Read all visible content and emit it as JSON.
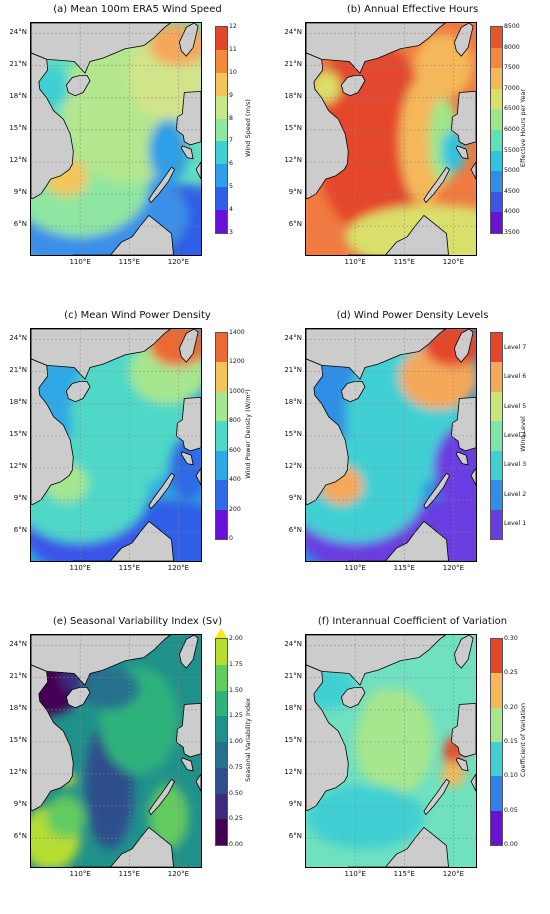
{
  "lat_ticks": [
    "24°N",
    "21°N",
    "18°N",
    "15°N",
    "12°N",
    "9°N",
    "6°N"
  ],
  "lon_ticks": [
    "110°E",
    "115°E",
    "120°E"
  ],
  "panels": [
    {
      "title": "(a) Mean 100m ERA5 Wind Speed",
      "cbar_label": "Wind Speed (m/s)",
      "cbar_ticks": [
        "3",
        "4",
        "5",
        "6",
        "7",
        "8",
        "9",
        "10",
        "11",
        "12"
      ],
      "cbar_colors": [
        "#6a11d9",
        "#2f5fe6",
        "#2e9fe8",
        "#3fd0d3",
        "#8fe6a0",
        "#c8e68a",
        "#f2c65a",
        "#f08a3a",
        "#e2462b"
      ]
    },
    {
      "title": "(b) Annual Effective Hours",
      "cbar_label": "Effective Hours per Year",
      "cbar_ticks": [
        "3500",
        "4000",
        "4500",
        "5000",
        "5500",
        "6000",
        "6500",
        "7000",
        "7500",
        "8000",
        "8500"
      ],
      "cbar_colors": [
        "#6a11d9",
        "#3a55e8",
        "#2f8fe8",
        "#2fc4e0",
        "#5fe0b5",
        "#9fe68a",
        "#d8e06a",
        "#f4b85a",
        "#f18a3f",
        "#e5562d"
      ]
    },
    {
      "title": "(c) Mean Wind Power Density",
      "cbar_label": "Wind Power Density (W/m²)",
      "cbar_ticks": [
        "0",
        "200",
        "400",
        "600",
        "800",
        "1000",
        "1200",
        "1400"
      ],
      "cbar_colors": [
        "#6a11d9",
        "#2f6be6",
        "#2fa8e6",
        "#4fd8c8",
        "#a6e68e",
        "#f2c65a",
        "#ec6a33"
      ]
    },
    {
      "title": "(d) Wind Power Density Levels",
      "cbar_label": "Wind Level",
      "cbar_ticks": [
        "Level 1",
        "Level 2",
        "Level 3",
        "Level 4",
        "Level 5",
        "Level 6",
        "Level 7"
      ],
      "cbar_colors": [
        "#6a3de0",
        "#2f8fe6",
        "#3fd0d3",
        "#7ee6a8",
        "#c8e67a",
        "#f4a85a",
        "#e5462b"
      ]
    },
    {
      "title": "(e) Seasonal Variability Index (Sv)",
      "cbar_label": "Seasonal Variability Index",
      "cbar_ticks": [
        "0.00",
        "0.25",
        "0.50",
        "0.75",
        "1.00",
        "1.25",
        "1.50",
        "1.75",
        "2.00"
      ],
      "cbar_colors": [
        "#440154",
        "#3b2a7e",
        "#2f4e8c",
        "#25708d",
        "#1f918b",
        "#2fb27c",
        "#64cb5e",
        "#b6dd30"
      ]
    },
    {
      "title": "(f) Interannual Coefficient of Variation",
      "cbar_label": "Coefficient of Variation",
      "cbar_ticks": [
        "0.00",
        "0.05",
        "0.10",
        "0.15",
        "0.20",
        "0.25",
        "0.30"
      ],
      "cbar_colors": [
        "#6a11d9",
        "#2f80e8",
        "#3fd0d3",
        "#a6e68e",
        "#f4b85a",
        "#e5462b"
      ]
    }
  ]
}
